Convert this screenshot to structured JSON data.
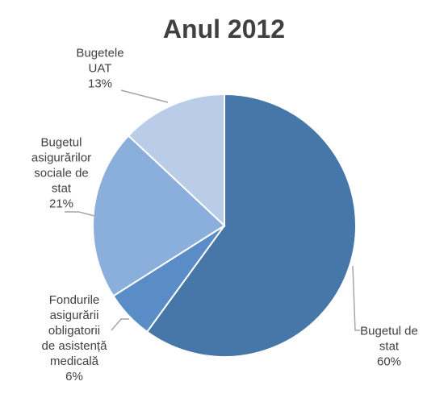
{
  "chart_data": {
    "type": "pie",
    "title": "Anul 2012",
    "categories": [
      "Bugetul de\nstat",
      "Fondurile\nasigurării\nobligatorii\nde asistență\nmedicală",
      "Bugetul\nasigurărilor\nsociale de\nstat",
      "Bugetele\nUAT"
    ],
    "values": [
      60,
      6,
      21,
      13
    ],
    "value_labels": [
      "60%",
      "6%",
      "21%",
      "13%"
    ],
    "colors": [
      "#4677a8",
      "#5a8dc8",
      "#8aafdd",
      "#b9cde8"
    ]
  }
}
